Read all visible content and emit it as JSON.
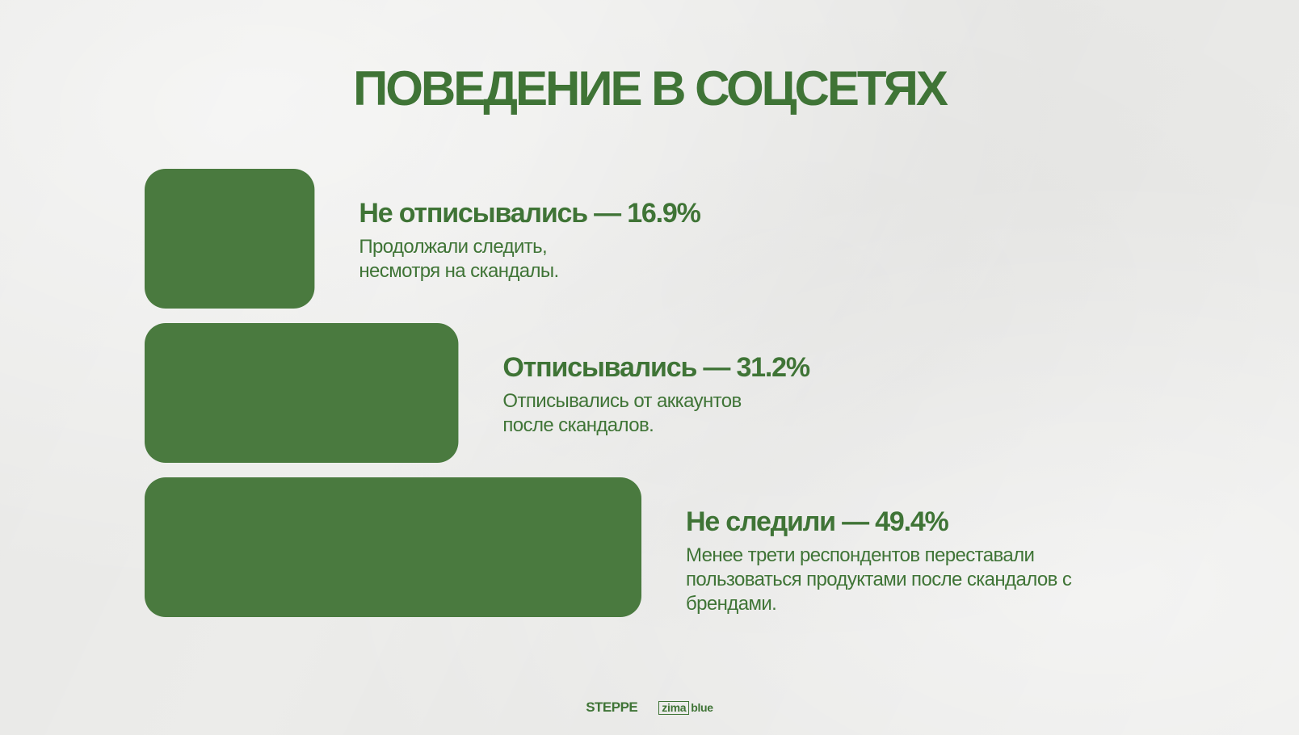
{
  "title": "ПОВЕДЕНИЕ В СОЦСЕТЯХ",
  "colors": {
    "accent": "#4a7a3f",
    "text": "#3f7436"
  },
  "chart_data": {
    "type": "bar",
    "orientation": "horizontal",
    "title": "ПОВЕДЕНИЕ В СОЦСЕТЯХ",
    "unit": "%",
    "series": [
      {
        "label": "Не отписывались — 16.9%",
        "value": 16.9,
        "description": [
          "Продолжали следить,",
          "несмотря на скандалы."
        ]
      },
      {
        "label": "Отписывались — 31.2%",
        "value": 31.2,
        "description": [
          "Отписывались от аккаунтов",
          "после скандалов."
        ]
      },
      {
        "label": "Не следили — 49.4%",
        "value": 49.4,
        "description": [
          "Менее трети респондентов переставали",
          "пользоваться продуктами после скандалов с",
          "брендами."
        ]
      }
    ]
  },
  "footer": {
    "logo_steppe": "STEPPE",
    "logo_zima": "zima",
    "logo_blue": "blue"
  }
}
